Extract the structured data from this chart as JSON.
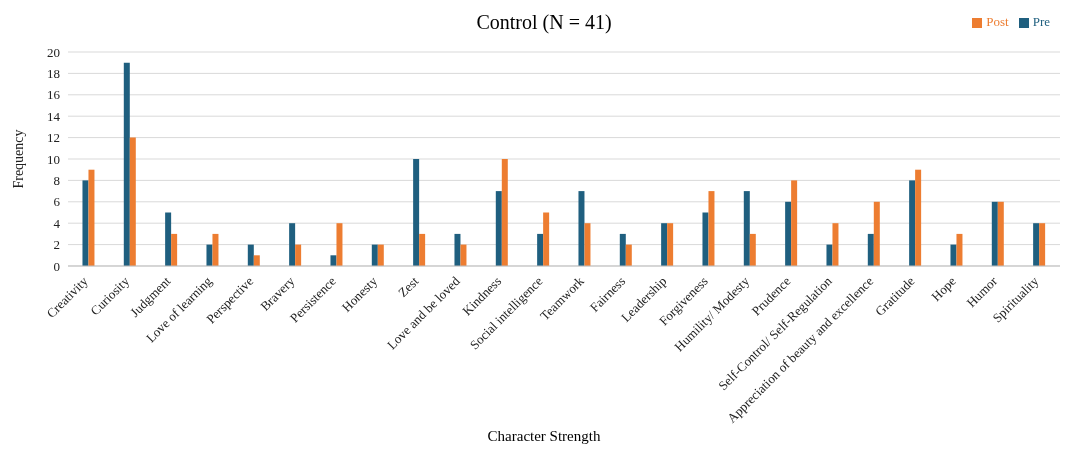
{
  "chart_data": {
    "type": "bar",
    "title": "Control (N = 41)",
    "xlabel": "Character Strength",
    "ylabel": "Frequency",
    "categories": [
      "Creativity",
      "Curiosity",
      "Judgment",
      "Love of learning",
      "Perspective",
      "Bravery",
      "Persistence",
      "Honesty",
      "Zest",
      "Love and be loved",
      "Kindness",
      "Social intelligence",
      "Teamwork",
      "Fairness",
      "Leadership",
      "Forgiveness",
      "Humility/ Modesty",
      "Prudence",
      "Self-Control/ Self-Regulation",
      "Appreciation of beauty and excellence",
      "Gratitude",
      "Hope",
      "Humor",
      "Spirituality"
    ],
    "series": [
      {
        "name": "Pre",
        "color": "#1f5f7f",
        "values": [
          8,
          19,
          5,
          2,
          2,
          4,
          1,
          2,
          10,
          3,
          7,
          3,
          7,
          3,
          4,
          5,
          7,
          6,
          2,
          3,
          8,
          2,
          6,
          4
        ]
      },
      {
        "name": "Post",
        "color": "#ed7d31",
        "values": [
          9,
          12,
          3,
          3,
          1,
          2,
          4,
          2,
          3,
          2,
          10,
          5,
          4,
          2,
          4,
          7,
          3,
          8,
          4,
          6,
          9,
          3,
          6,
          4
        ]
      }
    ],
    "ylim": [
      0,
      20
    ],
    "yticks": [
      0,
      2,
      4,
      6,
      8,
      10,
      12,
      14,
      16,
      18,
      20
    ],
    "grid": "y",
    "legend": "top right"
  }
}
